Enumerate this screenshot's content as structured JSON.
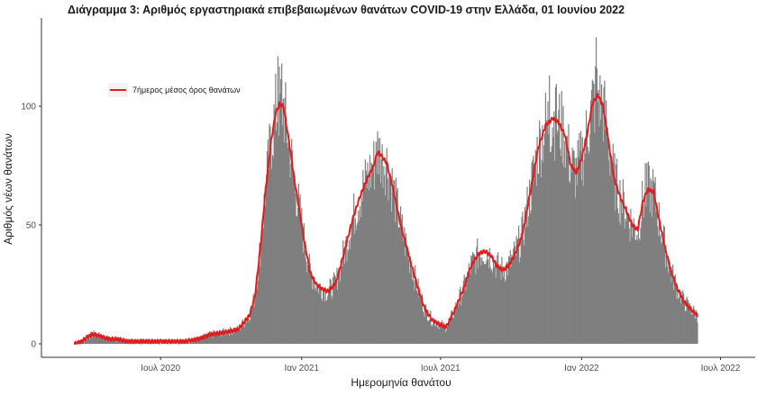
{
  "chart_data": {
    "type": "bar",
    "title": "Διάγραμμα 3: Αριθμός εργαστηριακά επιβεβαιωμένων θανάτων COVID-19 στην Ελλάδα, 01 Ιουνίου 2022",
    "xlabel": "Ημερομηνία θανάτου",
    "ylabel": "Αριθμός νέων θανάτων",
    "x_range": [
      "2020-03-10",
      "2022-06-01"
    ],
    "ylim": [
      0,
      130
    ],
    "y_ticks": [
      0,
      50,
      100
    ],
    "x_ticks": [
      {
        "date": "2020-07-01",
        "label": "Ιουλ 2020"
      },
      {
        "date": "2021-01-01",
        "label": "Ιαν 2021"
      },
      {
        "date": "2021-07-01",
        "label": "Ιουλ 2021"
      },
      {
        "date": "2022-01-01",
        "label": "Ιαν 2022"
      },
      {
        "date": "2022-07-01",
        "label": "Ιουλ 2022"
      }
    ],
    "grid": false,
    "legend_position": "top-left",
    "series": [
      {
        "name": "7ήμερος μέσος όρος θανάτων",
        "type": "line",
        "color": "#e41a1c",
        "points": [
          [
            "2020-03-11",
            0
          ],
          [
            "2020-03-20",
            1
          ],
          [
            "2020-03-28",
            3
          ],
          [
            "2020-04-05",
            4
          ],
          [
            "2020-04-15",
            3
          ],
          [
            "2020-04-25",
            2
          ],
          [
            "2020-05-05",
            2
          ],
          [
            "2020-05-20",
            1
          ],
          [
            "2020-06-10",
            1
          ],
          [
            "2020-07-10",
            1
          ],
          [
            "2020-08-01",
            1
          ],
          [
            "2020-08-20",
            2
          ],
          [
            "2020-09-05",
            4
          ],
          [
            "2020-09-25",
            5
          ],
          [
            "2020-10-10",
            6
          ],
          [
            "2020-10-25",
            12
          ],
          [
            "2020-11-01",
            20
          ],
          [
            "2020-11-08",
            40
          ],
          [
            "2020-11-15",
            65
          ],
          [
            "2020-11-22",
            85
          ],
          [
            "2020-11-28",
            97
          ],
          [
            "2020-12-03",
            101
          ],
          [
            "2020-12-08",
            100
          ],
          [
            "2020-12-15",
            86
          ],
          [
            "2020-12-22",
            70
          ],
          [
            "2020-12-28",
            58
          ],
          [
            "2021-01-05",
            42
          ],
          [
            "2021-01-12",
            30
          ],
          [
            "2021-01-20",
            25
          ],
          [
            "2021-01-28",
            23
          ],
          [
            "2021-02-05",
            22
          ],
          [
            "2021-02-15",
            26
          ],
          [
            "2021-02-25",
            38
          ],
          [
            "2021-03-08",
            52
          ],
          [
            "2021-03-18",
            62
          ],
          [
            "2021-03-28",
            70
          ],
          [
            "2021-04-05",
            75
          ],
          [
            "2021-04-10",
            81
          ],
          [
            "2021-04-15",
            79
          ],
          [
            "2021-04-22",
            76
          ],
          [
            "2021-05-01",
            64
          ],
          [
            "2021-05-10",
            50
          ],
          [
            "2021-05-20",
            38
          ],
          [
            "2021-06-01",
            24
          ],
          [
            "2021-06-10",
            15
          ],
          [
            "2021-06-20",
            10
          ],
          [
            "2021-07-01",
            8
          ],
          [
            "2021-07-08",
            7
          ],
          [
            "2021-07-15",
            11
          ],
          [
            "2021-07-22",
            16
          ],
          [
            "2021-08-01",
            24
          ],
          [
            "2021-08-10",
            33
          ],
          [
            "2021-08-20",
            38
          ],
          [
            "2021-08-28",
            39
          ],
          [
            "2021-09-05",
            37
          ],
          [
            "2021-09-12",
            33
          ],
          [
            "2021-09-20",
            31
          ],
          [
            "2021-09-28",
            33
          ],
          [
            "2021-10-05",
            37
          ],
          [
            "2021-10-15",
            45
          ],
          [
            "2021-10-25",
            62
          ],
          [
            "2021-11-05",
            82
          ],
          [
            "2021-11-15",
            92
          ],
          [
            "2021-11-25",
            95
          ],
          [
            "2021-12-02",
            93
          ],
          [
            "2021-12-10",
            88
          ],
          [
            "2021-12-18",
            75
          ],
          [
            "2021-12-25",
            72
          ],
          [
            "2022-01-01",
            78
          ],
          [
            "2022-01-08",
            88
          ],
          [
            "2022-01-15",
            101
          ],
          [
            "2022-01-22",
            105
          ],
          [
            "2022-01-29",
            100
          ],
          [
            "2022-02-05",
            85
          ],
          [
            "2022-02-12",
            70
          ],
          [
            "2022-02-20",
            62
          ],
          [
            "2022-02-28",
            56
          ],
          [
            "2022-03-08",
            50
          ],
          [
            "2022-03-15",
            48
          ],
          [
            "2022-03-22",
            60
          ],
          [
            "2022-03-28",
            65
          ],
          [
            "2022-04-05",
            64
          ],
          [
            "2022-04-12",
            52
          ],
          [
            "2022-04-20",
            40
          ],
          [
            "2022-04-28",
            30
          ],
          [
            "2022-05-06",
            23
          ],
          [
            "2022-05-14",
            18
          ],
          [
            "2022-05-22",
            15
          ],
          [
            "2022-06-01",
            12
          ]
        ]
      },
      {
        "name": "",
        "type": "bar",
        "color": "#7f7f7f",
        "note_points": "daily bars follow the 7-day average with day-to-day noise; marked spikes listed",
        "spikes": [
          [
            "2020-12-01",
            121
          ],
          [
            "2020-12-06",
            118
          ],
          [
            "2021-04-08",
            85
          ],
          [
            "2021-04-16",
            84
          ],
          [
            "2021-11-20",
            113
          ],
          [
            "2021-11-28",
            108
          ],
          [
            "2022-01-20",
            129
          ],
          [
            "2022-01-25",
            113
          ],
          [
            "2022-03-25",
            76
          ]
        ]
      }
    ]
  }
}
